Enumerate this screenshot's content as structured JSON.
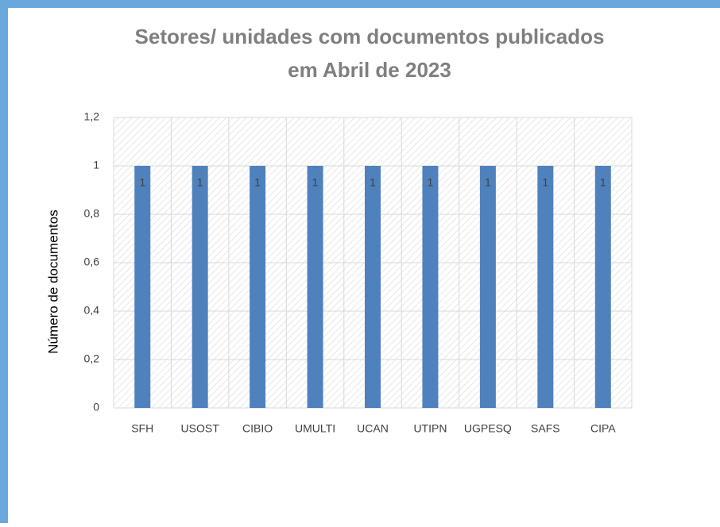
{
  "chart_data": {
    "type": "bar",
    "title": "Setores/ unidades  com documentos  publicados",
    "subtitle": "em Abril de 2023",
    "y_label": "Número de documentos",
    "categories": [
      "SFH",
      "USOST",
      "CIBIO",
      "UMULTI",
      "UCAN",
      "UTIPN",
      "UGPESQ",
      "SAFS",
      "CIPA"
    ],
    "values": [
      1,
      1,
      1,
      1,
      1,
      1,
      1,
      1,
      1
    ],
    "color": "#4f81bd",
    "ylim": [
      0,
      1.2
    ],
    "yticks": [
      0,
      {
        "value": 0.2,
        "label": "0,2"
      },
      {
        "value": 0.4,
        "label": "0,4"
      },
      {
        "value": 0.6,
        "label": "0,6"
      },
      {
        "value": 0.8,
        "label": "0,8"
      },
      1,
      {
        "value": 1.2,
        "label": "1,2"
      }
    ],
    "grid": true
  }
}
